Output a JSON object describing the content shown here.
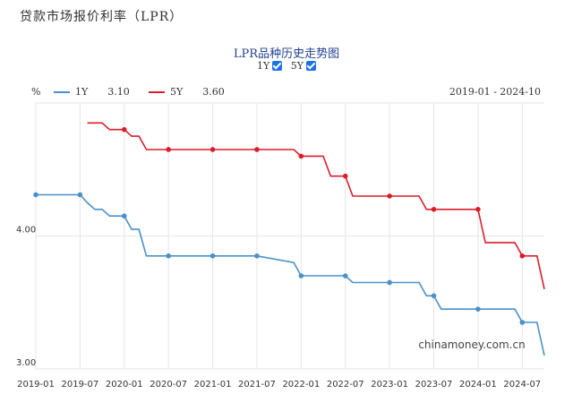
{
  "page_title": "贷款市场报价利率（LPR）",
  "chart_title": "LPR品种历史走势图",
  "toggles": [
    {
      "label": "1Y",
      "checked": true
    },
    {
      "label": "5Y",
      "checked": true
    }
  ],
  "unit": "%",
  "legend": [
    {
      "name": "1Y",
      "value": "3.10",
      "color": "#4a90c9"
    },
    {
      "name": "5Y",
      "value": "3.60",
      "color": "#d81e2c"
    }
  ],
  "date_range": "2019-01 - 2024-10",
  "watermark": "chinamoney.com.cn",
  "chart_data": {
    "type": "line",
    "title": "LPR品种历史走势图",
    "xlabel": "",
    "ylabel": "%",
    "xlim": [
      "2019-01",
      "2024-10"
    ],
    "ylim": [
      3.0,
      5.0
    ],
    "grid": true,
    "legend_position": "top-left",
    "x_ticks": [
      "2019-01",
      "2019-07",
      "2020-01",
      "2020-07",
      "2021-01",
      "2021-07",
      "2022-01",
      "2022-07",
      "2023-01",
      "2023-07",
      "2024-01",
      "2024-07"
    ],
    "y_ticks": [
      {
        "value": 3.0,
        "label": "3.00"
      },
      {
        "value": 4.0,
        "label": "4.00"
      }
    ],
    "series": [
      {
        "name": "1Y",
        "color": "#4a90c9",
        "points": [
          [
            "2019-01",
            4.31
          ],
          [
            "2019-07",
            4.31
          ],
          [
            "2019-08",
            4.25
          ],
          [
            "2019-09",
            4.2
          ],
          [
            "2019-10",
            4.2
          ],
          [
            "2019-11",
            4.15
          ],
          [
            "2019-12",
            4.15
          ],
          [
            "2020-01",
            4.15
          ],
          [
            "2020-02",
            4.05
          ],
          [
            "2020-03",
            4.05
          ],
          [
            "2020-04",
            3.85
          ],
          [
            "2020-07",
            3.85
          ],
          [
            "2021-01",
            3.85
          ],
          [
            "2021-07",
            3.85
          ],
          [
            "2021-12",
            3.8
          ],
          [
            "2022-01",
            3.7
          ],
          [
            "2022-07",
            3.7
          ],
          [
            "2022-08",
            3.65
          ],
          [
            "2023-01",
            3.65
          ],
          [
            "2023-05",
            3.65
          ],
          [
            "2023-06",
            3.55
          ],
          [
            "2023-07",
            3.55
          ],
          [
            "2023-08",
            3.45
          ],
          [
            "2024-01",
            3.45
          ],
          [
            "2024-06",
            3.45
          ],
          [
            "2024-07",
            3.35
          ],
          [
            "2024-09",
            3.35
          ],
          [
            "2024-10",
            3.1
          ]
        ],
        "markers": [
          "2019-01",
          "2019-07",
          "2020-01",
          "2020-07",
          "2021-01",
          "2021-07",
          "2022-01",
          "2022-07",
          "2023-01",
          "2023-07",
          "2024-01",
          "2024-07"
        ]
      },
      {
        "name": "5Y",
        "color": "#d81e2c",
        "points": [
          [
            "2019-08",
            4.85
          ],
          [
            "2019-10",
            4.85
          ],
          [
            "2019-11",
            4.8
          ],
          [
            "2020-01",
            4.8
          ],
          [
            "2020-02",
            4.75
          ],
          [
            "2020-03",
            4.75
          ],
          [
            "2020-04",
            4.65
          ],
          [
            "2020-07",
            4.65
          ],
          [
            "2021-01",
            4.65
          ],
          [
            "2021-07",
            4.65
          ],
          [
            "2021-12",
            4.65
          ],
          [
            "2022-01",
            4.6
          ],
          [
            "2022-04",
            4.6
          ],
          [
            "2022-05",
            4.45
          ],
          [
            "2022-07",
            4.45
          ],
          [
            "2022-08",
            4.3
          ],
          [
            "2023-01",
            4.3
          ],
          [
            "2023-05",
            4.3
          ],
          [
            "2023-06",
            4.2
          ],
          [
            "2023-07",
            4.2
          ],
          [
            "2024-01",
            4.2
          ],
          [
            "2024-02",
            3.95
          ],
          [
            "2024-06",
            3.95
          ],
          [
            "2024-07",
            3.85
          ],
          [
            "2024-09",
            3.85
          ],
          [
            "2024-10",
            3.6
          ]
        ],
        "markers": [
          "2020-01",
          "2020-07",
          "2021-01",
          "2021-07",
          "2022-01",
          "2022-07",
          "2023-01",
          "2023-07",
          "2024-01",
          "2024-07"
        ]
      }
    ]
  }
}
